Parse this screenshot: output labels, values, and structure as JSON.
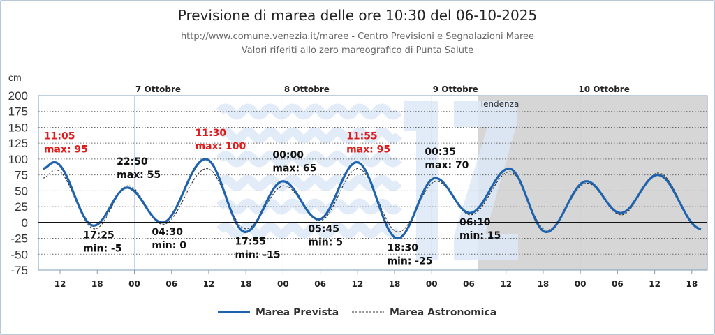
{
  "header": {
    "title": "Previsione di marea delle ore 10:30 del 06-10-2025",
    "subtitle_1": "http://www.comune.venezia.it/maree - Centro Previsioni e Segnalazioni Maree",
    "subtitle_2": "Valori riferiti allo zero mareografico di Punta Salute"
  },
  "colors": {
    "forecast": "#1f63ad",
    "astronomic": "#333333",
    "high_label": "#e01b1b",
    "low_label": "#111111",
    "trend_shade": "#d6d6d6",
    "watermark": "#dde9f7"
  },
  "chart_data": {
    "type": "line",
    "ylabel": "cm",
    "ylim": [
      -75,
      200
    ],
    "yticks": [
      200,
      175,
      150,
      125,
      100,
      75,
      50,
      25,
      0,
      -25,
      -50,
      -75
    ],
    "x_unit": "hours since 06-10-2025 00:00",
    "xlim": [
      8.5,
      116.5
    ],
    "xticks": [
      {
        "x": 12,
        "label": "12"
      },
      {
        "x": 18,
        "label": "18"
      },
      {
        "x": 24,
        "label": "00"
      },
      {
        "x": 30,
        "label": "06"
      },
      {
        "x": 36,
        "label": "12"
      },
      {
        "x": 42,
        "label": "18"
      },
      {
        "x": 48,
        "label": "00"
      },
      {
        "x": 54,
        "label": "06"
      },
      {
        "x": 60,
        "label": "12"
      },
      {
        "x": 66,
        "label": "18"
      },
      {
        "x": 72,
        "label": "00"
      },
      {
        "x": 78,
        "label": "06"
      },
      {
        "x": 84,
        "label": "12"
      },
      {
        "x": 90,
        "label": "18"
      },
      {
        "x": 96,
        "label": "00"
      },
      {
        "x": 102,
        "label": "06"
      },
      {
        "x": 108,
        "label": "12"
      },
      {
        "x": 114,
        "label": "18"
      }
    ],
    "day_labels": [
      {
        "x": 24,
        "label": "7 Ottobre"
      },
      {
        "x": 48,
        "label": "8 Ottobre"
      },
      {
        "x": 72,
        "label": "9 Ottobre"
      },
      {
        "x": 96,
        "label": "10 Ottobre"
      }
    ],
    "trend": {
      "start_x": 79.5,
      "label": "Tendenza"
    },
    "series": [
      {
        "name": "Marea Prevista",
        "style": "solid",
        "extrema": [
          [
            9.2,
            85
          ],
          [
            11.08,
            95
          ],
          [
            17.42,
            -5
          ],
          [
            22.83,
            55
          ],
          [
            28.5,
            0
          ],
          [
            35.5,
            100
          ],
          [
            41.92,
            -15
          ],
          [
            48.0,
            65
          ],
          [
            53.75,
            5
          ],
          [
            59.92,
            95
          ],
          [
            66.5,
            -25
          ],
          [
            72.58,
            70
          ],
          [
            78.17,
            15
          ],
          [
            84.5,
            85
          ],
          [
            90.5,
            -15
          ],
          [
            97.0,
            65
          ],
          [
            102.5,
            15
          ],
          [
            108.5,
            75
          ],
          [
            115.5,
            -10
          ]
        ]
      },
      {
        "name": "Marea Astronomica",
        "style": "dashed",
        "extrema": [
          [
            9.2,
            70
          ],
          [
            11.3,
            83
          ],
          [
            17.6,
            -10
          ],
          [
            23.0,
            58
          ],
          [
            28.6,
            -3
          ],
          [
            35.7,
            85
          ],
          [
            42.0,
            -10
          ],
          [
            48.2,
            58
          ],
          [
            53.9,
            3
          ],
          [
            60.1,
            85
          ],
          [
            66.6,
            -15
          ],
          [
            72.8,
            65
          ],
          [
            78.3,
            12
          ],
          [
            84.6,
            80
          ],
          [
            90.6,
            -12
          ],
          [
            97.1,
            62
          ],
          [
            102.6,
            12
          ],
          [
            108.6,
            78
          ],
          [
            115.5,
            -10
          ]
        ]
      }
    ],
    "annotations": [
      {
        "x": 11.08,
        "y": 95,
        "time": "11:05",
        "text": "max: 95",
        "kind": "max_high",
        "pos": "above"
      },
      {
        "x": 17.42,
        "y": -5,
        "time": "17:25",
        "text": "min: -5",
        "kind": "min",
        "pos": "below"
      },
      {
        "x": 22.83,
        "y": 55,
        "time": "22:50",
        "text": "max: 55",
        "kind": "max",
        "pos": "above"
      },
      {
        "x": 28.5,
        "y": 0,
        "time": "04:30",
        "text": "min: 0",
        "kind": "min",
        "pos": "below"
      },
      {
        "x": 35.5,
        "y": 100,
        "time": "11:30",
        "text": "max: 100",
        "kind": "max_high",
        "pos": "above"
      },
      {
        "x": 41.92,
        "y": -15,
        "time": "17:55",
        "text": "min: -15",
        "kind": "min",
        "pos": "below"
      },
      {
        "x": 48.0,
        "y": 65,
        "time": "00:00",
        "text": "max: 65",
        "kind": "max",
        "pos": "above"
      },
      {
        "x": 53.75,
        "y": 5,
        "time": "05:45",
        "text": "min: 5",
        "kind": "min",
        "pos": "below"
      },
      {
        "x": 59.92,
        "y": 95,
        "time": "11:55",
        "text": "max: 95",
        "kind": "max_high",
        "pos": "above"
      },
      {
        "x": 66.5,
        "y": -25,
        "time": "18:30",
        "text": "min: -25",
        "kind": "min",
        "pos": "below"
      },
      {
        "x": 72.58,
        "y": 70,
        "time": "00:35",
        "text": "max: 70",
        "kind": "max",
        "pos": "above"
      },
      {
        "x": 78.17,
        "y": 15,
        "time": "06:10",
        "text": "min: 15",
        "kind": "min",
        "pos": "below"
      }
    ],
    "legend": {
      "position": "bottom-center",
      "items": [
        "Marea Prevista",
        "Marea Astronomica"
      ]
    },
    "grid": true
  }
}
